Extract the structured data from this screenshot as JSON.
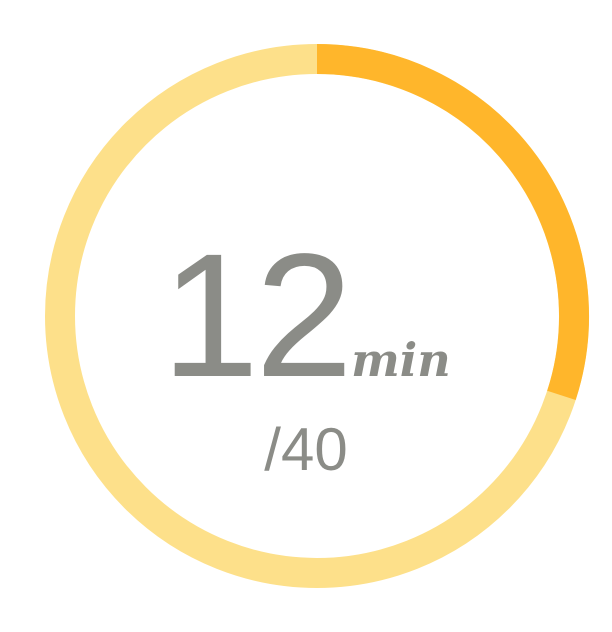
{
  "timer": {
    "elapsed": "12",
    "unit": "min",
    "total_label": "/40",
    "progress_fraction": 0.3
  },
  "colors": {
    "track": "#fde08a",
    "progress": "#ffb62b",
    "text": "#8b8c87",
    "background": "#ffffff"
  }
}
